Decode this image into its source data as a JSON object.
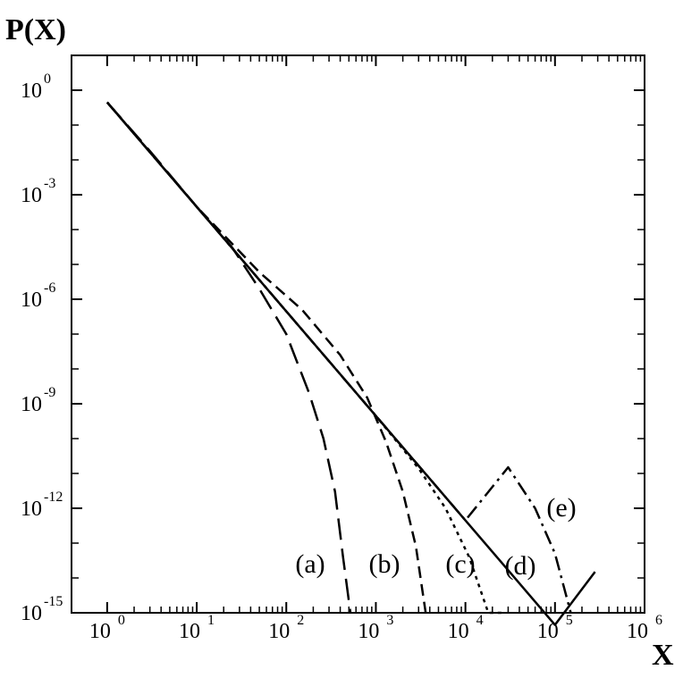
{
  "chart_data": {
    "type": "line",
    "xlabel": "X",
    "ylabel": "P(X)",
    "xscale": "log",
    "yscale": "log",
    "xlim": [
      0.4,
      1000000
    ],
    "ylim": [
      1e-15,
      10.0
    ],
    "x_tick_labels": [
      {
        "base": "10",
        "exp": "0",
        "value": 1
      },
      {
        "base": "10",
        "exp": "1",
        "value": 10
      },
      {
        "base": "10",
        "exp": "2",
        "value": 100
      },
      {
        "base": "10",
        "exp": "3",
        "value": 1000
      },
      {
        "base": "10",
        "exp": "4",
        "value": 10000
      },
      {
        "base": "10",
        "exp": "5",
        "value": 100000
      },
      {
        "base": "10",
        "exp": "6",
        "value": 1000000
      }
    ],
    "y_tick_labels": [
      {
        "base": "10",
        "exp": "0",
        "value": 1
      },
      {
        "base": "10",
        "exp": "-3",
        "value": 0.001
      },
      {
        "base": "10",
        "exp": "-6",
        "value": 1e-06
      },
      {
        "base": "10",
        "exp": "-9",
        "value": 1e-09
      },
      {
        "base": "10",
        "exp": "-12",
        "value": 1e-12
      },
      {
        "base": "10",
        "exp": "-15",
        "value": 1e-15
      }
    ],
    "grid": false,
    "series": [
      {
        "name": "(a)",
        "line_style": "long-dash",
        "points": [
          {
            "x": 1,
            "y": 0.45
          },
          {
            "x": 3,
            "y": 0.018
          },
          {
            "x": 10,
            "y": 0.00045
          },
          {
            "x": 25,
            "y": 3e-05
          },
          {
            "x": 50,
            "y": 2e-06
          },
          {
            "x": 100,
            "y": 1e-07
          },
          {
            "x": 180,
            "y": 2e-09
          },
          {
            "x": 260,
            "y": 1e-10
          },
          {
            "x": 350,
            "y": 3e-12
          },
          {
            "x": 430,
            "y": 4e-14
          },
          {
            "x": 520,
            "y": 1e-15
          }
        ]
      },
      {
        "name": "(b)",
        "line_style": "dash",
        "points": [
          {
            "x": 1,
            "y": 0.45
          },
          {
            "x": 10,
            "y": 0.00045
          },
          {
            "x": 50,
            "y": 6e-06
          },
          {
            "x": 150,
            "y": 5e-07
          },
          {
            "x": 400,
            "y": 2.5e-08
          },
          {
            "x": 800,
            "y": 1.5e-09
          },
          {
            "x": 1300,
            "y": 8e-11
          },
          {
            "x": 2000,
            "y": 3e-12
          },
          {
            "x": 2800,
            "y": 8e-14
          },
          {
            "x": 3600,
            "y": 1e-15
          }
        ]
      },
      {
        "name": "(c)",
        "line_style": "dot",
        "points": [
          {
            "x": 1,
            "y": 0.45
          },
          {
            "x": 10,
            "y": 0.00045
          },
          {
            "x": 100,
            "y": 4.5e-07
          },
          {
            "x": 1000,
            "y": 4.5e-10
          },
          {
            "x": 3000,
            "y": 1.4e-11
          },
          {
            "x": 6000,
            "y": 1e-12
          },
          {
            "x": 11000,
            "y": 4e-14
          },
          {
            "x": 18000,
            "y": 1e-15
          },
          {
            "x": 26000,
            "y": 1e-15
          }
        ]
      },
      {
        "name": "(d)",
        "line_style": "dash-dot",
        "points": [
          {
            "x": 1,
            "y": 0.45
          },
          {
            "x": 1000,
            "y": 4.5e-10
          },
          {
            "x": 10000,
            "y": 4.5e-13
          },
          {
            "x": 30000,
            "y": 1.5e-11
          },
          {
            "x": 60000,
            "y": 1e-12
          },
          {
            "x": 100000,
            "y": 5e-14
          },
          {
            "x": 150000,
            "y": 1e-15
          }
        ]
      },
      {
        "name": "(e)",
        "line_style": "solid",
        "points": [
          {
            "x": 1,
            "y": 0.45
          },
          {
            "x": 10,
            "y": 0.00045
          },
          {
            "x": 100,
            "y": 4.5e-07
          },
          {
            "x": 1000,
            "y": 4.5e-10
          },
          {
            "x": 10000,
            "y": 4.5e-13
          },
          {
            "x": 100000,
            "y": 4.5e-16
          },
          {
            "x": 280000,
            "y": 1.5e-14
          }
        ]
      }
    ],
    "labels": [
      "(a)",
      "(b)",
      "(c)",
      "(d)",
      "(e)"
    ]
  }
}
